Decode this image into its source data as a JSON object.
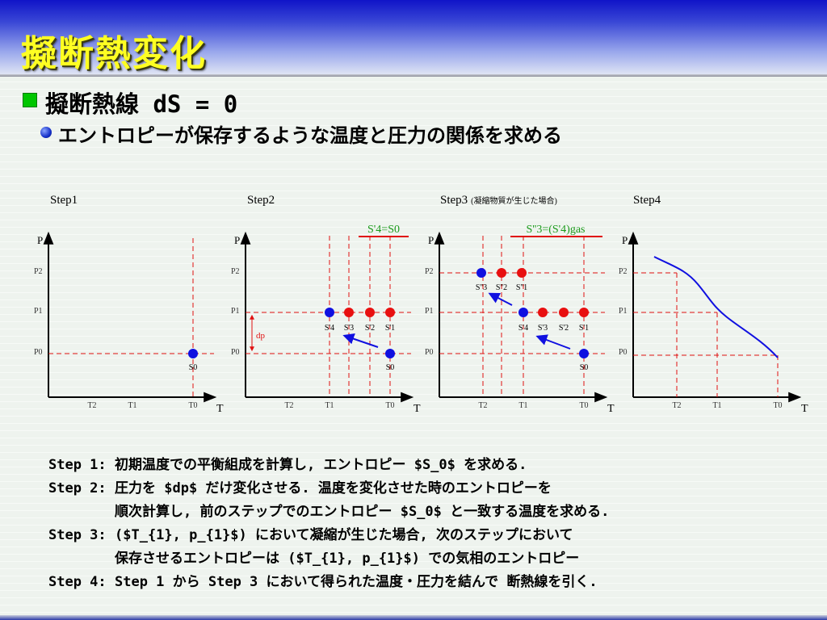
{
  "title": "擬断熱変化",
  "bullet1": "擬断熱線 dS = 0",
  "bullet2": "エントロピーが保存するような温度と圧力の関係を求める",
  "panels": [
    {
      "label": "Step1",
      "sublabel": "",
      "y_tick_labels": [
        "P2",
        "P1",
        "P0"
      ],
      "x_tick_labels": [
        "T2",
        "T1",
        "T0"
      ],
      "y_axis_label": "P",
      "x_axis_label": "T",
      "point_labels": [
        "S0"
      ]
    },
    {
      "label": "Step2",
      "sublabel": "",
      "annotation": "S'4=S0",
      "y_tick_labels": [
        "P2",
        "P1",
        "P0"
      ],
      "x_tick_labels": [
        "T2",
        "T1",
        "T0"
      ],
      "y_axis_label": "P",
      "x_axis_label": "T",
      "dp_label": "dp",
      "point_labels": [
        "S'4",
        "S'3",
        "S'2",
        "S'1",
        "S0"
      ]
    },
    {
      "label": "Step3",
      "sublabel": "(凝縮物質が生じた場合)",
      "annotation": "S''3=(S'4)gas",
      "y_tick_labels": [
        "P2",
        "P1",
        "P0"
      ],
      "x_tick_labels": [
        "T2",
        "T1",
        "T0"
      ],
      "y_axis_label": "P",
      "x_axis_label": "T",
      "point_labels": [
        "S''3",
        "S''2",
        "S''1",
        "S'4",
        "S'3",
        "S'2",
        "S'1",
        "S0"
      ]
    },
    {
      "label": "Step4",
      "sublabel": "",
      "y_tick_labels": [
        "P2",
        "P1",
        "P0"
      ],
      "x_tick_labels": [
        "T2",
        "T1",
        "T0"
      ],
      "y_axis_label": "P",
      "x_axis_label": "T"
    }
  ],
  "colors": {
    "title": "#ffff22",
    "guide": "#e01010",
    "point_blue": "#1010e0",
    "point_red": "#e81010",
    "annotation_green": "#1a9a1a",
    "curve": "#1010e0"
  },
  "steps": [
    {
      "label": "Step 1:",
      "lines": [
        "初期温度での平衡組成を計算し, エントロピー $S_0$ を求める."
      ]
    },
    {
      "label": "Step 2:",
      "lines": [
        "圧力を $dp$ だけ変化させる. 温度を変化させた時のエントロピーを",
        "順次計算し, 前のステップでのエントロピー $S_0$ と一致する温度を求める."
      ]
    },
    {
      "label": "Step 3:",
      "lines": [
        "($T_{1}, p_{1}$) において凝縮が生じた場合, 次のステップにおいて",
        "保存させるエントロピーは ($T_{1}, p_{1}$) での気相のエントロピー"
      ]
    },
    {
      "label": "Step 4:",
      "lines": [
        "Step 1 から Step 3 において得られた温度・圧力を結んで 断熱線を引く."
      ]
    }
  ]
}
